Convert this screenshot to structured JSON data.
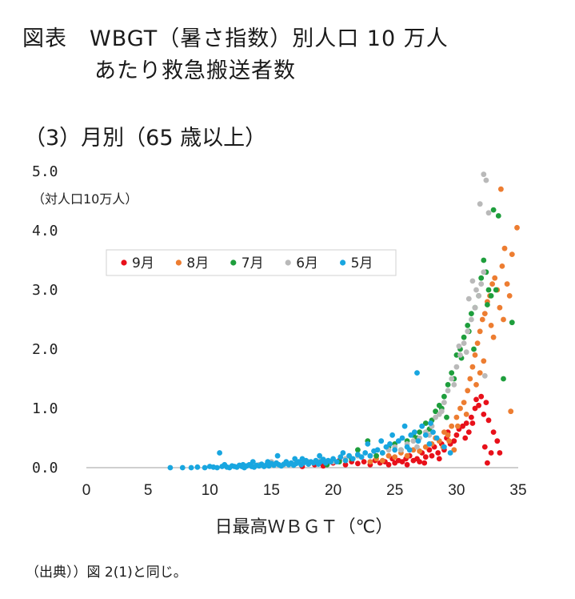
{
  "header": {
    "title_line1": "図表　WBGT（暑さ指数）別人口 10 万人",
    "title_line2": "あたり救急搬送者数",
    "subtitle": "（3）月別（65 歳以上）",
    "source": "（出典））図 2(1)と同じ。"
  },
  "chart_data": {
    "type": "scatter",
    "xlabel": "日最高ＷＢＧＴ（℃）",
    "ylabel": "（対人口10万人）",
    "xlim": [
      0,
      35
    ],
    "ylim": [
      0,
      5
    ],
    "xticks": [
      "0",
      "5",
      "10",
      "15",
      "20",
      "25",
      "30",
      "35"
    ],
    "yticks": [
      "0.0",
      "1.0",
      "2.0",
      "3.0",
      "4.0",
      "5.0"
    ],
    "grid": false,
    "legend_position": "upper-left-inside",
    "series": [
      {
        "name": "9月",
        "color": "#e8101a",
        "points": [
          [
            17.5,
            0.02
          ],
          [
            18.5,
            0.05
          ],
          [
            19.2,
            0.03
          ],
          [
            20.0,
            0.08
          ],
          [
            20.5,
            0.12
          ],
          [
            21.0,
            0.05
          ],
          [
            21.5,
            0.1
          ],
          [
            22.0,
            0.07
          ],
          [
            22.5,
            0.1
          ],
          [
            23.0,
            0.05
          ],
          [
            23.4,
            0.12
          ],
          [
            23.8,
            0.08
          ],
          [
            24.2,
            0.1
          ],
          [
            24.5,
            0.05
          ],
          [
            24.8,
            0.15
          ],
          [
            25.0,
            0.08
          ],
          [
            25.3,
            0.12
          ],
          [
            25.6,
            0.1
          ],
          [
            25.9,
            0.15
          ],
          [
            26.0,
            0.05
          ],
          [
            26.2,
            0.2
          ],
          [
            26.5,
            0.12
          ],
          [
            26.8,
            0.15
          ],
          [
            27.0,
            0.1
          ],
          [
            27.2,
            0.25
          ],
          [
            27.5,
            0.18
          ],
          [
            27.8,
            0.3
          ],
          [
            28.0,
            0.2
          ],
          [
            28.2,
            0.35
          ],
          [
            28.5,
            0.25
          ],
          [
            28.8,
            0.4
          ],
          [
            29.0,
            0.3
          ],
          [
            29.2,
            0.5
          ],
          [
            29.5,
            0.4
          ],
          [
            29.8,
            0.45
          ],
          [
            30.0,
            0.55
          ],
          [
            30.2,
            0.65
          ],
          [
            30.5,
            0.7
          ],
          [
            30.8,
            0.75
          ],
          [
            31.0,
            0.6
          ],
          [
            31.2,
            0.85
          ],
          [
            31.5,
            1.0
          ],
          [
            31.6,
            1.15
          ],
          [
            31.8,
            1.05
          ],
          [
            32.0,
            1.2
          ],
          [
            32.2,
            0.9
          ],
          [
            32.4,
            1.1
          ],
          [
            32.6,
            0.8
          ],
          [
            32.3,
            0.35
          ],
          [
            32.8,
            0.25
          ],
          [
            33.0,
            0.6
          ],
          [
            33.3,
            0.45
          ],
          [
            33.5,
            0.25
          ],
          [
            32.5,
            0.08
          ],
          [
            29.3,
            0.6
          ],
          [
            30.7,
            0.5
          ],
          [
            31.3,
            0.75
          ],
          [
            28.6,
            0.15
          ],
          [
            27.4,
            0.08
          ]
        ]
      },
      {
        "name": "8月",
        "color": "#ed7d31",
        "points": [
          [
            23.0,
            0.1
          ],
          [
            23.5,
            0.15
          ],
          [
            24.0,
            0.12
          ],
          [
            24.5,
            0.2
          ],
          [
            25.0,
            0.18
          ],
          [
            25.5,
            0.25
          ],
          [
            26.0,
            0.2
          ],
          [
            26.5,
            0.3
          ],
          [
            27.0,
            0.28
          ],
          [
            27.5,
            0.35
          ],
          [
            28.0,
            0.4
          ],
          [
            28.3,
            0.5
          ],
          [
            28.6,
            0.45
          ],
          [
            29.0,
            0.6
          ],
          [
            29.3,
            0.55
          ],
          [
            29.6,
            0.7
          ],
          [
            30.0,
            0.85
          ],
          [
            30.3,
            1.0
          ],
          [
            30.6,
            1.1
          ],
          [
            30.9,
            1.3
          ],
          [
            31.1,
            1.5
          ],
          [
            31.3,
            1.7
          ],
          [
            31.5,
            1.9
          ],
          [
            31.7,
            2.1
          ],
          [
            31.9,
            2.3
          ],
          [
            32.1,
            2.5
          ],
          [
            32.3,
            2.6
          ],
          [
            32.5,
            2.8
          ],
          [
            32.7,
            2.9
          ],
          [
            32.9,
            3.1
          ],
          [
            33.1,
            3.2
          ],
          [
            33.3,
            3.0
          ],
          [
            33.5,
            2.7
          ],
          [
            33.7,
            3.4
          ],
          [
            33.9,
            3.7
          ],
          [
            34.1,
            3.1
          ],
          [
            34.3,
            2.9
          ],
          [
            34.5,
            3.6
          ],
          [
            34.9,
            4.05
          ],
          [
            33.6,
            4.7
          ],
          [
            34.4,
            0.95
          ],
          [
            33.0,
            2.2
          ],
          [
            32.2,
            1.8
          ],
          [
            31.6,
            1.4
          ],
          [
            30.8,
            0.9
          ],
          [
            30.1,
            0.7
          ],
          [
            29.4,
            0.45
          ],
          [
            33.8,
            2.5
          ],
          [
            32.8,
            2.4
          ],
          [
            31.9,
            1.6
          ],
          [
            29.8,
            0.3
          ],
          [
            28.9,
            0.35
          ]
        ]
      },
      {
        "name": "7月",
        "color": "#1e9e3c",
        "points": [
          [
            19.5,
            0.05
          ],
          [
            20.5,
            0.1
          ],
          [
            21.5,
            0.15
          ],
          [
            22.0,
            0.3
          ],
          [
            22.8,
            0.45
          ],
          [
            23.5,
            0.2
          ],
          [
            24.0,
            0.25
          ],
          [
            24.5,
            0.35
          ],
          [
            25.0,
            0.4
          ],
          [
            25.5,
            0.3
          ],
          [
            26.0,
            0.45
          ],
          [
            26.5,
            0.55
          ],
          [
            27.0,
            0.6
          ],
          [
            27.5,
            0.75
          ],
          [
            28.0,
            0.8
          ],
          [
            28.3,
            0.95
          ],
          [
            28.6,
            1.05
          ],
          [
            29.0,
            1.2
          ],
          [
            29.3,
            1.4
          ],
          [
            29.6,
            1.6
          ],
          [
            30.0,
            1.9
          ],
          [
            30.3,
            2.0
          ],
          [
            30.6,
            2.2
          ],
          [
            30.9,
            2.4
          ],
          [
            31.2,
            2.6
          ],
          [
            31.5,
            2.7
          ],
          [
            31.8,
            2.9
          ],
          [
            32.0,
            3.2
          ],
          [
            32.2,
            3.5
          ],
          [
            32.4,
            3.3
          ],
          [
            32.6,
            3.0
          ],
          [
            32.8,
            2.9
          ],
          [
            33.0,
            4.35
          ],
          [
            33.4,
            4.25
          ],
          [
            34.5,
            2.45
          ],
          [
            33.8,
            1.5
          ],
          [
            31.0,
            2.3
          ],
          [
            30.4,
            1.85
          ],
          [
            29.8,
            1.5
          ],
          [
            28.8,
            1.0
          ],
          [
            27.8,
            0.65
          ],
          [
            26.8,
            0.5
          ],
          [
            29.2,
            0.85
          ],
          [
            31.4,
            2.0
          ],
          [
            32.5,
            2.75
          ],
          [
            33.2,
            3.0
          ]
        ]
      },
      {
        "name": "6月",
        "color": "#b9b9b9",
        "points": [
          [
            14.0,
            0.05
          ],
          [
            15.0,
            0.1
          ],
          [
            16.0,
            0.05
          ],
          [
            17.0,
            0.08
          ],
          [
            18.0,
            0.1
          ],
          [
            19.0,
            0.12
          ],
          [
            20.0,
            0.1
          ],
          [
            21.0,
            0.15
          ],
          [
            22.0,
            0.2
          ],
          [
            23.0,
            0.2
          ],
          [
            24.0,
            0.25
          ],
          [
            24.5,
            0.3
          ],
          [
            25.0,
            0.35
          ],
          [
            25.5,
            0.3
          ],
          [
            26.0,
            0.4
          ],
          [
            26.5,
            0.45
          ],
          [
            27.0,
            0.5
          ],
          [
            27.5,
            0.6
          ],
          [
            28.0,
            0.7
          ],
          [
            28.3,
            0.85
          ],
          [
            28.6,
            0.9
          ],
          [
            29.0,
            1.1
          ],
          [
            29.3,
            1.3
          ],
          [
            29.6,
            1.5
          ],
          [
            30.0,
            1.7
          ],
          [
            30.3,
            1.9
          ],
          [
            30.6,
            2.1
          ],
          [
            30.9,
            2.3
          ],
          [
            31.2,
            2.5
          ],
          [
            31.5,
            2.7
          ],
          [
            31.8,
            2.9
          ],
          [
            32.0,
            3.1
          ],
          [
            32.2,
            3.3
          ],
          [
            31.3,
            3.15
          ],
          [
            31.0,
            2.85
          ],
          [
            32.4,
            4.85
          ],
          [
            32.2,
            4.95
          ],
          [
            31.9,
            4.45
          ],
          [
            32.6,
            4.3
          ],
          [
            32.3,
            1.55
          ],
          [
            30.8,
            1.95
          ],
          [
            29.8,
            1.4
          ],
          [
            28.8,
            0.95
          ],
          [
            27.8,
            0.55
          ],
          [
            26.8,
            0.35
          ],
          [
            30.2,
            2.05
          ],
          [
            31.6,
            3.0
          ]
        ]
      },
      {
        "name": "5月",
        "color": "#18a6e0",
        "points": [
          [
            6.8,
            0.0
          ],
          [
            7.8,
            0.0
          ],
          [
            8.5,
            0.0
          ],
          [
            9.0,
            0.01
          ],
          [
            9.6,
            0.0
          ],
          [
            10.0,
            0.02
          ],
          [
            10.3,
            0.01
          ],
          [
            10.6,
            0.0
          ],
          [
            11.0,
            0.02
          ],
          [
            11.2,
            0.05
          ],
          [
            11.4,
            0.01
          ],
          [
            11.6,
            0.0
          ],
          [
            11.8,
            0.03
          ],
          [
            12.0,
            0.02
          ],
          [
            12.2,
            0.01
          ],
          [
            12.4,
            0.04
          ],
          [
            12.6,
            0.02
          ],
          [
            12.8,
            0.0
          ],
          [
            13.0,
            0.03
          ],
          [
            13.2,
            0.05
          ],
          [
            13.4,
            0.02
          ],
          [
            13.6,
            0.01
          ],
          [
            13.8,
            0.04
          ],
          [
            14.0,
            0.03
          ],
          [
            14.2,
            0.06
          ],
          [
            14.4,
            0.02
          ],
          [
            14.6,
            0.05
          ],
          [
            14.8,
            0.03
          ],
          [
            15.0,
            0.07
          ],
          [
            15.2,
            0.04
          ],
          [
            15.4,
            0.08
          ],
          [
            15.6,
            0.05
          ],
          [
            15.8,
            0.03
          ],
          [
            16.0,
            0.06
          ],
          [
            16.2,
            0.1
          ],
          [
            16.4,
            0.05
          ],
          [
            16.6,
            0.08
          ],
          [
            16.8,
            0.04
          ],
          [
            17.0,
            0.07
          ],
          [
            17.2,
            0.1
          ],
          [
            17.4,
            0.05
          ],
          [
            17.6,
            0.08
          ],
          [
            17.8,
            0.12
          ],
          [
            18.0,
            0.06
          ],
          [
            18.2,
            0.1
          ],
          [
            18.4,
            0.08
          ],
          [
            18.6,
            0.12
          ],
          [
            18.8,
            0.06
          ],
          [
            19.0,
            0.1
          ],
          [
            19.2,
            0.14
          ],
          [
            19.4,
            0.08
          ],
          [
            19.6,
            0.12
          ],
          [
            19.8,
            0.1
          ],
          [
            20.0,
            0.15
          ],
          [
            20.3,
            0.1
          ],
          [
            20.6,
            0.18
          ],
          [
            21.0,
            0.12
          ],
          [
            21.3,
            0.2
          ],
          [
            21.6,
            0.15
          ],
          [
            22.0,
            0.22
          ],
          [
            22.3,
            0.18
          ],
          [
            22.6,
            0.25
          ],
          [
            23.0,
            0.2
          ],
          [
            23.3,
            0.28
          ],
          [
            23.6,
            0.3
          ],
          [
            24.0,
            0.25
          ],
          [
            24.3,
            0.35
          ],
          [
            24.6,
            0.4
          ],
          [
            25.0,
            0.3
          ],
          [
            25.3,
            0.45
          ],
          [
            25.6,
            0.5
          ],
          [
            26.0,
            0.35
          ],
          [
            26.3,
            0.55
          ],
          [
            26.6,
            0.6
          ],
          [
            26.9,
            0.45
          ],
          [
            27.2,
            0.7
          ],
          [
            27.5,
            0.55
          ],
          [
            27.8,
            0.4
          ],
          [
            28.1,
            0.6
          ],
          [
            28.4,
            0.5
          ],
          [
            26.8,
            1.6
          ],
          [
            29.0,
            0.35
          ],
          [
            29.5,
            0.25
          ],
          [
            10.8,
            0.25
          ],
          [
            13.5,
            0.1
          ],
          [
            15.5,
            0.2
          ],
          [
            17.5,
            0.15
          ],
          [
            22.8,
            0.4
          ],
          [
            24.8,
            0.55
          ],
          [
            25.8,
            0.7
          ],
          [
            20.8,
            0.25
          ],
          [
            18.9,
            0.2
          ],
          [
            16.9,
            0.15
          ],
          [
            23.9,
            0.45
          ],
          [
            12.7,
            0.05
          ],
          [
            14.7,
            0.1
          ],
          [
            27.9,
            0.75
          ],
          [
            26.2,
            0.3
          ]
        ]
      }
    ]
  }
}
